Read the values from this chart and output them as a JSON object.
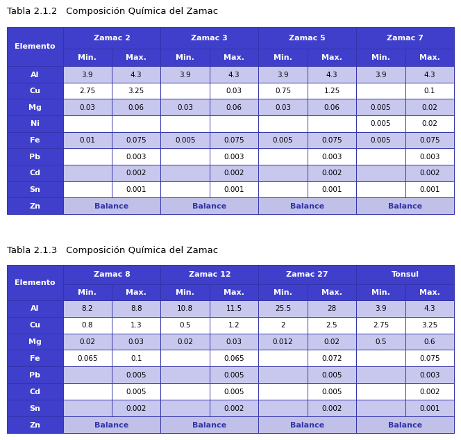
{
  "title1": "Tabla 2.1.2   Composición Química del Zamac",
  "title2": "Tabla 2.1.3   Composición Química del Zamac",
  "table1": {
    "col_groups": [
      "Zamac 2",
      "Zamac 3",
      "Zamac 5",
      "Zamac 7"
    ],
    "sub_cols": [
      "Min.",
      "Max.",
      "Min.",
      "Max.",
      "Min.",
      "Max.",
      "Min.",
      "Max."
    ],
    "elements": [
      "Al",
      "Cu",
      "Mg",
      "Ni",
      "Fe",
      "Pb",
      "Cd",
      "Sn",
      "Zn"
    ],
    "data": [
      [
        "3.9",
        "4.3",
        "3.9",
        "4.3",
        "3.9",
        "4.3",
        "3.9",
        "4.3"
      ],
      [
        "2.75",
        "3.25",
        "",
        "0.03",
        "0.75",
        "1.25",
        "",
        "0.1"
      ],
      [
        "0.03",
        "0.06",
        "0.03",
        "0.06",
        "0.03",
        "0.06",
        "0.005",
        "0.02"
      ],
      [
        "",
        "",
        "",
        "",
        "",
        "",
        "0.005",
        "0.02"
      ],
      [
        "0.01",
        "0.075",
        "0.005",
        "0.075",
        "0.005",
        "0.075",
        "0.005",
        "0.075"
      ],
      [
        "",
        "0.003",
        "",
        "0.003",
        "",
        "0.003",
        "",
        "0.003"
      ],
      [
        "",
        "0.002",
        "",
        "0.002",
        "",
        "0.002",
        "",
        "0.002"
      ],
      [
        "",
        "0.001",
        "",
        "0.001",
        "",
        "0.001",
        "",
        "0.001"
      ],
      [
        "Balance",
        "Balance",
        "Balance",
        "Balance"
      ]
    ]
  },
  "table2": {
    "col_groups": [
      "Zamac 8",
      "Zamac 12",
      "Zamac 27",
      "Tonsul"
    ],
    "sub_cols": [
      "Min.",
      "Max.",
      "Min.",
      "Max.",
      "Min.",
      "Max.",
      "Min.",
      "Max."
    ],
    "elements": [
      "Al",
      "Cu",
      "Mg",
      "Fe",
      "Pb",
      "Cd",
      "Sn",
      "Zn"
    ],
    "data": [
      [
        "8.2",
        "8.8",
        "10.8",
        "11.5",
        "25.5",
        "28",
        "3.9",
        "4.3"
      ],
      [
        "0.8",
        "1.3",
        "0.5",
        "1.2",
        "2",
        "2.5",
        "2.75",
        "3.25"
      ],
      [
        "0.02",
        "0.03",
        "0.02",
        "0.03",
        "0.012",
        "0.02",
        "0.5",
        "0.6"
      ],
      [
        "0.065",
        "0.1",
        "",
        "0.065",
        "",
        "0.072",
        "",
        "0.075"
      ],
      [
        "",
        "0.005",
        "",
        "0.005",
        "",
        "0.005",
        "",
        "0.003"
      ],
      [
        "",
        "0.005",
        "",
        "0.005",
        "",
        "0.005",
        "",
        "0.002"
      ],
      [
        "",
        "0.002",
        "",
        "0.002",
        "",
        "0.002",
        "",
        "0.001"
      ],
      [
        "Balance",
        "Balance",
        "Balance",
        "Balance"
      ]
    ]
  },
  "color_header": "#3f3fcc",
  "color_header_text": "#ffffff",
  "color_element_bg": "#3f3fcc",
  "color_element_text": "#ffffff",
  "color_row_light": "#c8c8ee",
  "color_row_white": "#ffffff",
  "color_balance_bg": "#c0c0e8",
  "color_balance_text": "#3333aa",
  "color_border": "#3333aa",
  "bg_color": "#ffffff",
  "title_fontsize": 9.5,
  "header_fontsize": 8,
  "data_fontsize": 7.5,
  "elem_fontsize": 8
}
